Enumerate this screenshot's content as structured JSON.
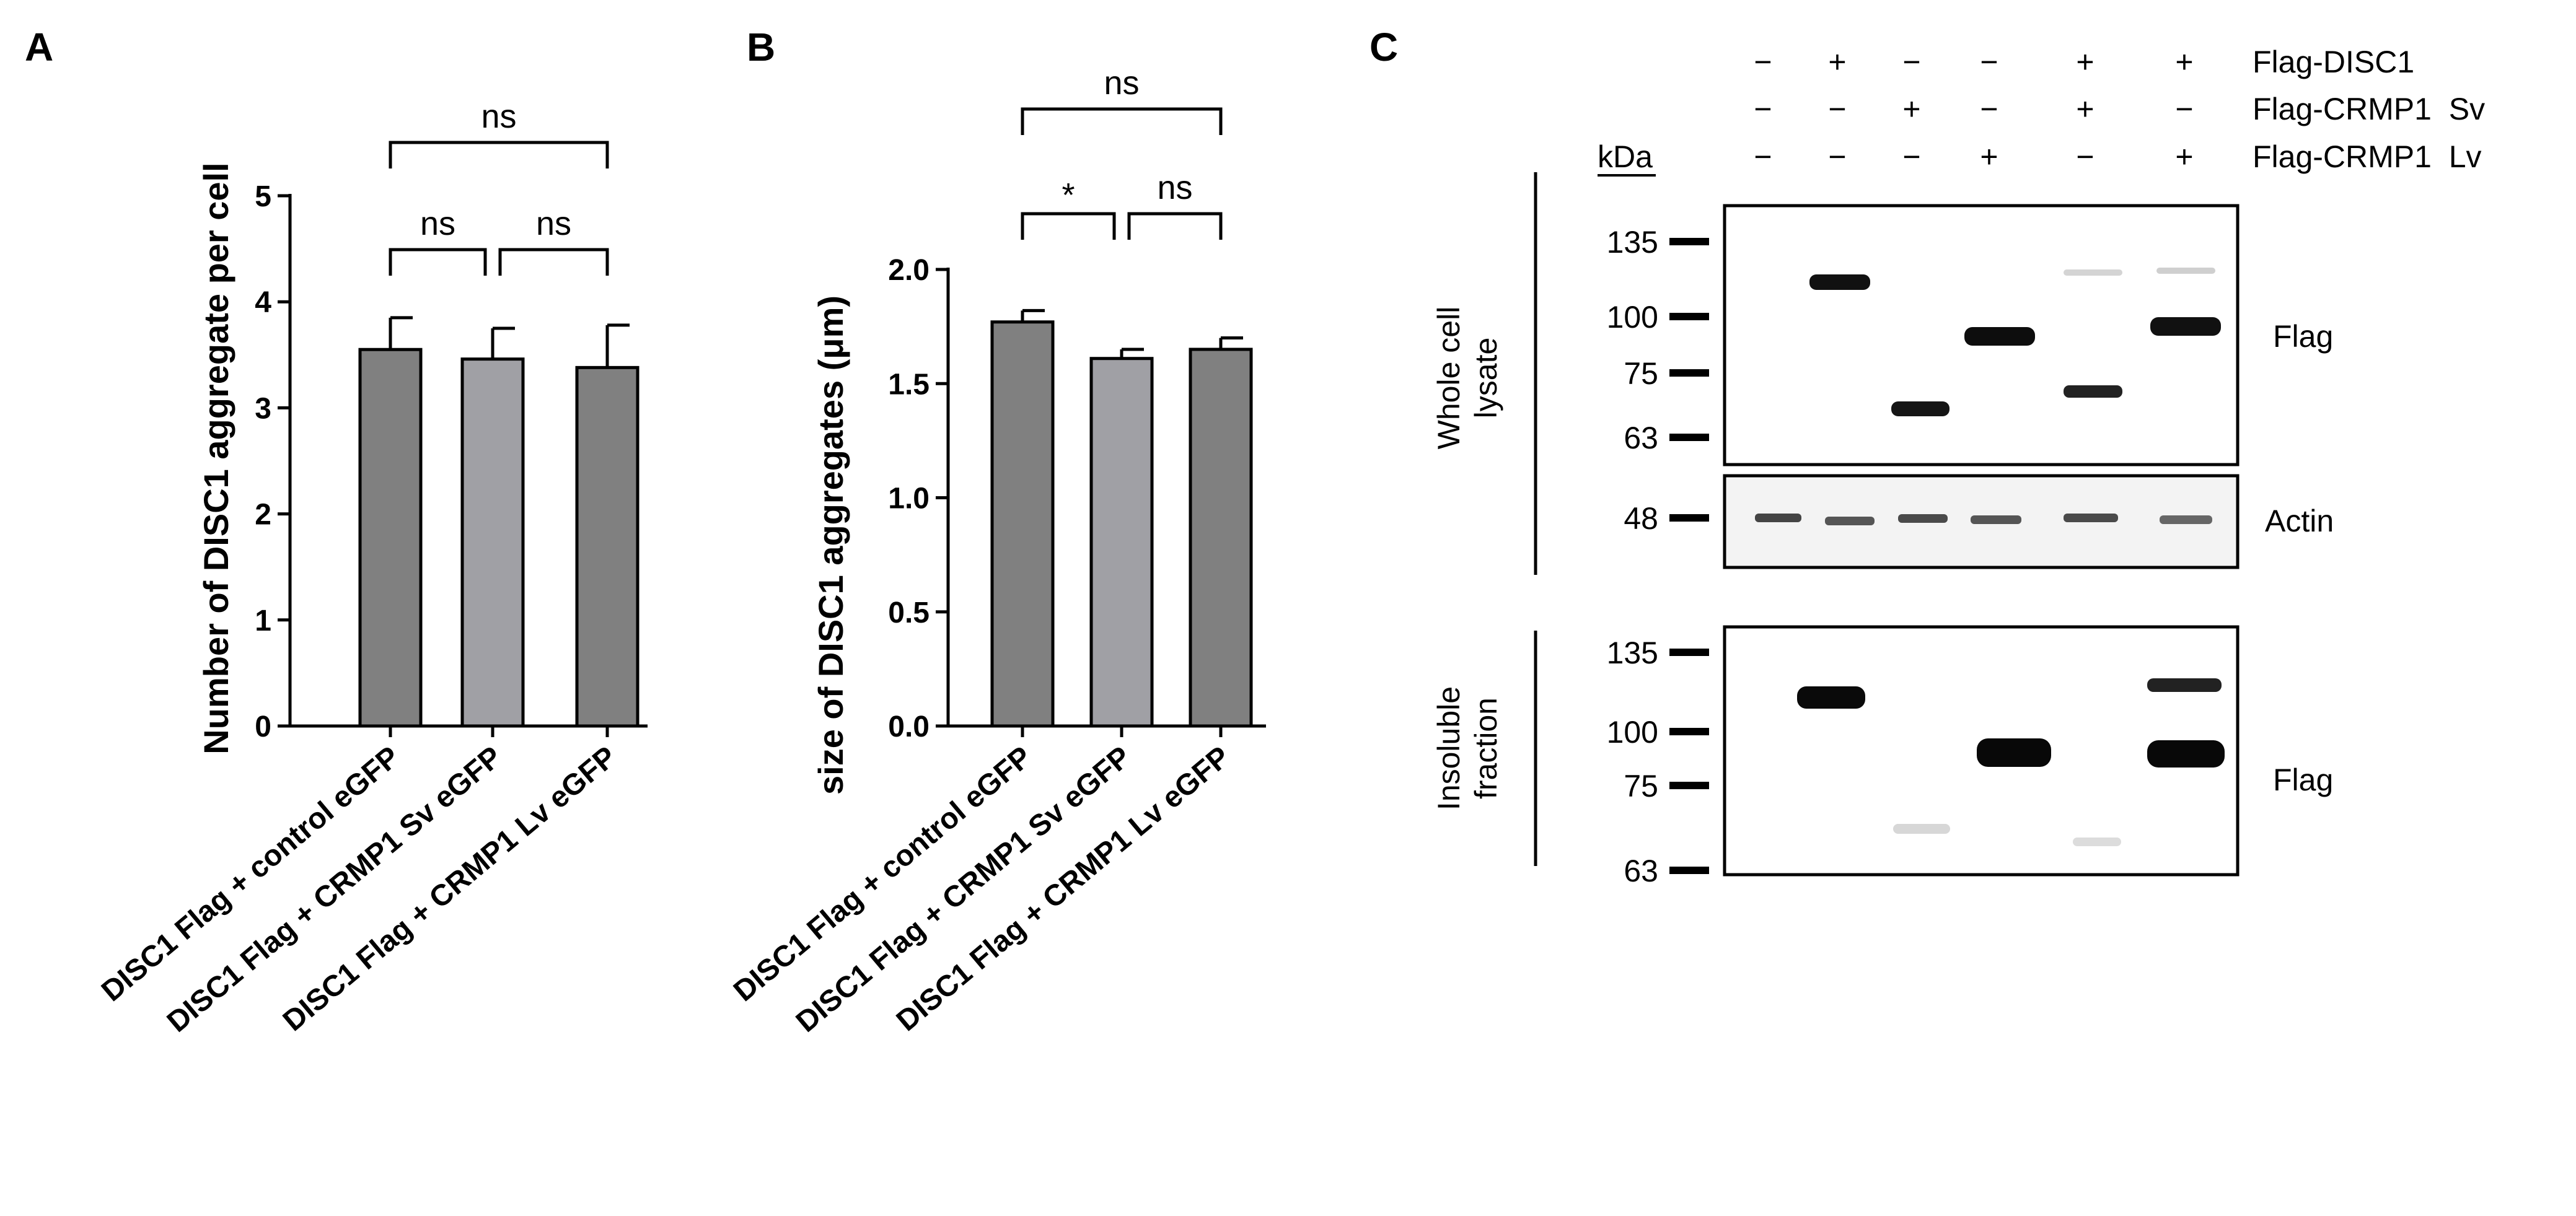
{
  "panels": {
    "a": "A",
    "b": "B",
    "c": "C"
  },
  "chart_data": [
    {
      "type": "bar",
      "title": "",
      "ylabel": "Number of DISC1 aggregate per cell",
      "xlabel": "",
      "ylim": [
        0,
        5
      ],
      "yticks": [
        "0",
        "1",
        "2",
        "3",
        "4",
        "5"
      ],
      "categories": [
        "DISC1 Flag + control eGFP",
        "DISC1 Flag + CRMP1 Sv eGFP",
        "DISC1 Flag + CRMP1 Lv eGFP"
      ],
      "values": [
        3.55,
        3.46,
        3.38
      ],
      "errors": [
        0.3,
        0.29,
        0.4
      ],
      "colors": [
        "#808080",
        "#a0a0a5",
        "#808080"
      ],
      "significance": [
        {
          "pair": [
            0,
            2
          ],
          "label": "ns"
        },
        {
          "pair": [
            0,
            1
          ],
          "label": "ns"
        },
        {
          "pair": [
            1,
            2
          ],
          "label": "ns"
        }
      ]
    },
    {
      "type": "bar",
      "title": "",
      "ylabel": "size of DISC1 aggregates (μm)",
      "xlabel": "",
      "ylim": [
        0,
        2.0
      ],
      "yticks": [
        "0.0",
        "0.5",
        "1.0",
        "1.5",
        "2.0"
      ],
      "categories": [
        "DISC1 Flag + control eGFP",
        "DISC1 Flag + CRMP1 Sv eGFP",
        "DISC1 Flag + CRMP1 Lv eGFP"
      ],
      "values": [
        1.77,
        1.61,
        1.65
      ],
      "errors": [
        0.05,
        0.04,
        0.05
      ],
      "colors": [
        "#808080",
        "#a0a0a5",
        "#808080"
      ],
      "significance": [
        {
          "pair": [
            0,
            2
          ],
          "label": "ns"
        },
        {
          "pair": [
            0,
            1
          ],
          "label": "*"
        },
        {
          "pair": [
            1,
            2
          ],
          "label": "ns"
        }
      ]
    }
  ],
  "blot": {
    "conditions": [
      {
        "label": "Flag-DISC1",
        "signs": [
          "−",
          "+",
          "−",
          "−",
          "+",
          "+"
        ]
      },
      {
        "label": "Flag-CRMP1  Sv",
        "signs": [
          "−",
          "−",
          "+",
          "−",
          "+",
          "−"
        ]
      },
      {
        "label": "Flag-CRMP1  Lv",
        "signs": [
          "−",
          "−",
          "−",
          "+",
          "−",
          "+"
        ]
      }
    ],
    "kda_label": "kDa",
    "sections": [
      {
        "label_lines": [
          "Whole cell",
          "lysate"
        ]
      },
      {
        "label_lines": [
          "Insoluble",
          "fraction"
        ]
      }
    ],
    "markers_top": [
      "135",
      "100",
      "75",
      "63"
    ],
    "marker_actin": "48",
    "markers_bottom": [
      "135",
      "100",
      "75",
      "63"
    ],
    "band_labels": {
      "flag_top": "Flag",
      "actin": "Actin",
      "flag_bottom": "Flag"
    }
  }
}
